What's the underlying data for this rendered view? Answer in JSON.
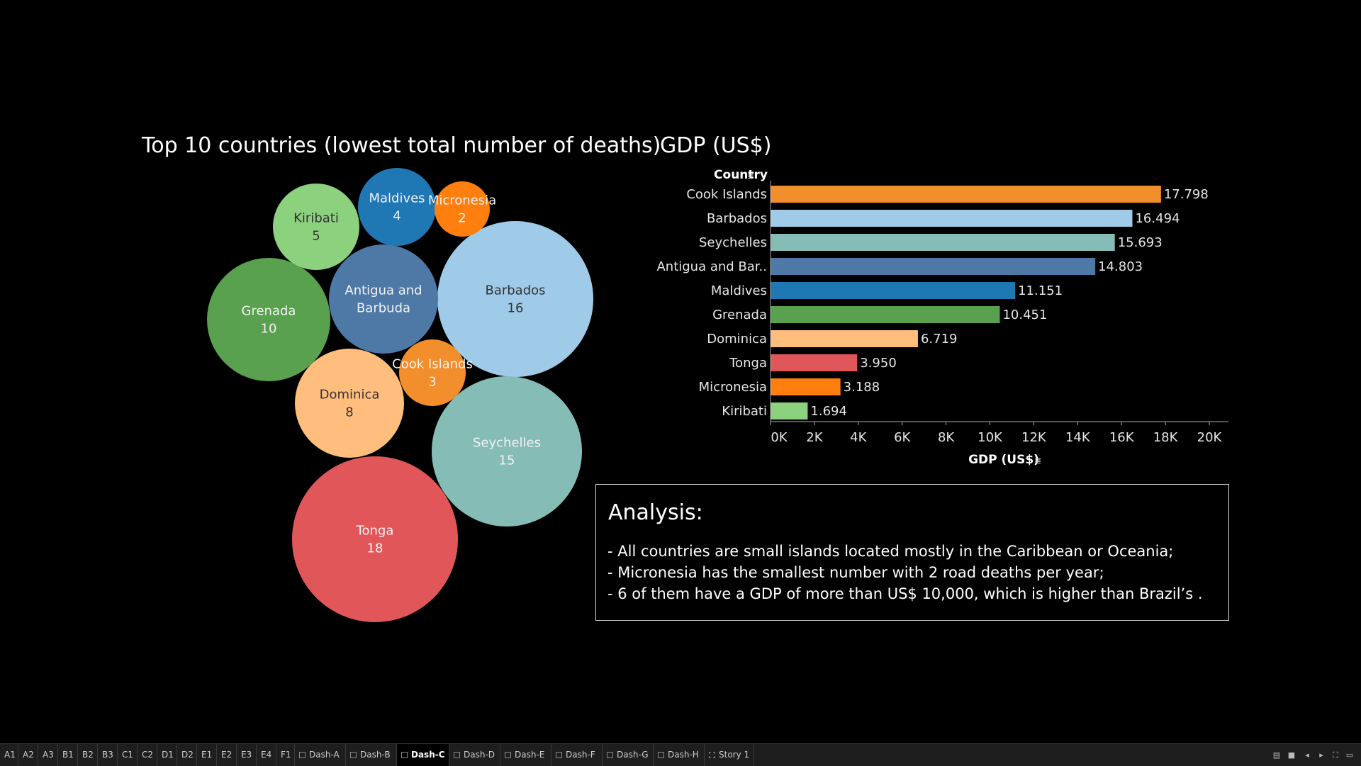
{
  "bubble_chart": {
    "title": "Top 10 countries (lowest total number of deaths)",
    "chart_data": {
      "type": "bubble",
      "title": "Top 10 countries (lowest total number of deaths)",
      "series": [
        {
          "country": "Tonga",
          "value": 18,
          "color": "#e15759"
        },
        {
          "country": "Barbados",
          "value": 16,
          "color": "#a0cbe8"
        },
        {
          "country": "Seychelles",
          "value": 15,
          "color": "#86bcb6"
        },
        {
          "country": "Grenada",
          "value": 10,
          "color": "#59a14f"
        },
        {
          "country": "Antigua and Barbuda",
          "value": null,
          "color": "#4e79a7"
        },
        {
          "country": "Dominica",
          "value": 8,
          "color": "#ffbe7d"
        },
        {
          "country": "Kiribati",
          "value": 5,
          "color": "#8cd17d"
        },
        {
          "country": "Maldives",
          "value": 4,
          "color": "#1f77b4"
        },
        {
          "country": "Cook Islands",
          "value": 3,
          "color": "#f28e2b"
        },
        {
          "country": "Micronesia",
          "value": 2,
          "color": "#ff7f0e"
        }
      ]
    }
  },
  "bar_chart": {
    "title": "GDP (US$)",
    "chart_data": {
      "type": "bar",
      "orientation": "horizontal",
      "y_header": "Country",
      "xlabel": "GDP (US$)",
      "xlim": [
        0,
        20000
      ],
      "ticks": [
        "0K",
        "2K",
        "4K",
        "6K",
        "8K",
        "10K",
        "12K",
        "14K",
        "16K",
        "18K",
        "20K"
      ],
      "categories": [
        "Cook Islands",
        "Barbados",
        "Seychelles",
        "Antigua and Bar..",
        "Maldives",
        "Grenada",
        "Dominica",
        "Tonga",
        "Micronesia",
        "Kiribati"
      ],
      "values": [
        17798,
        16494,
        15693,
        14803,
        11151,
        10451,
        6719,
        3950,
        3188,
        1694
      ],
      "value_labels": [
        "17.798",
        "16.494",
        "15.693",
        "14.803",
        "11.151",
        "10.451",
        "6.719",
        "3.950",
        "3.188",
        "1.694"
      ],
      "colors": [
        "#f28e2b",
        "#a0cbe8",
        "#86bcb6",
        "#4e79a7",
        "#1f77b4",
        "#59a14f",
        "#ffbe7d",
        "#e15759",
        "#ff7f0e",
        "#8cd17d"
      ]
    }
  },
  "analysis": {
    "title": "Analysis:",
    "lines": [
      "- All countries are small islands located mostly in the Caribbean or Oceania;",
      "- Micronesia has the smallest number with 2 road deaths per year;",
      "- 6 of them have a GDP of more than US$ 10,000, which is higher than Brazil’s ."
    ]
  },
  "tabs": [
    {
      "label": "A1"
    },
    {
      "label": "A2"
    },
    {
      "label": "A3"
    },
    {
      "label": "B1"
    },
    {
      "label": "B2"
    },
    {
      "label": "B3"
    },
    {
      "label": "C1"
    },
    {
      "label": "C2"
    },
    {
      "label": "D1"
    },
    {
      "label": "D2"
    },
    {
      "label": "E1"
    },
    {
      "label": "E2"
    },
    {
      "label": "E3"
    },
    {
      "label": "E4"
    },
    {
      "label": "F1"
    },
    {
      "label": "Dash-A",
      "kind": "dashboard"
    },
    {
      "label": "Dash-B",
      "kind": "dashboard"
    },
    {
      "label": "Dash-C",
      "kind": "dashboard",
      "active": true
    },
    {
      "label": "Dash-D",
      "kind": "dashboard"
    },
    {
      "label": "Dash-E",
      "kind": "dashboard"
    },
    {
      "label": "Dash-F",
      "kind": "dashboard"
    },
    {
      "label": "Dash-G",
      "kind": "dashboard"
    },
    {
      "label": "Dash-H",
      "kind": "dashboard"
    },
    {
      "label": "Story 1",
      "kind": "story"
    }
  ]
}
